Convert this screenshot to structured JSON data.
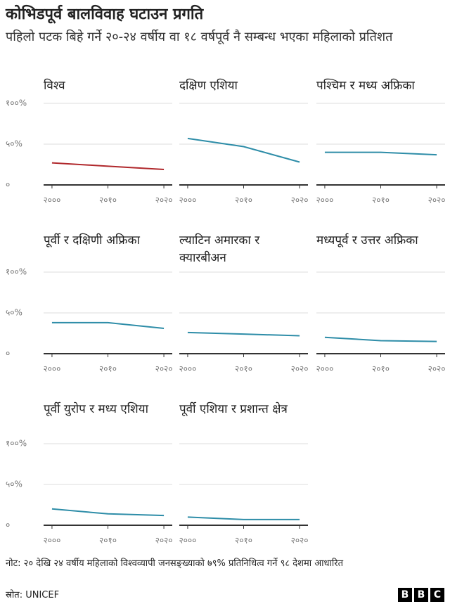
{
  "header": {
    "title": "कोभिडपूर्व बालविवाह घटाउन प्रगति",
    "subtitle": "पहिलो पटक बिहे गर्ने २०-२४ वर्षीय वा १८ वर्षपूर्व नै सम्बन्ध भएका महिलाको प्रतिशत"
  },
  "chart_data": {
    "type": "line",
    "x": [
      2000,
      2010,
      2020
    ],
    "xlim": [
      1998.5,
      2021.5
    ],
    "xticks": [
      {
        "value": 2000,
        "label": "२०००"
      },
      {
        "value": 2010,
        "label": "२०१०"
      },
      {
        "value": 2020,
        "label": "२०२०"
      }
    ],
    "ylim": [
      0,
      100
    ],
    "yticks": [
      {
        "value": 0,
        "label": "०"
      },
      {
        "value": 50,
        "label": "५०%"
      },
      {
        "value": 100,
        "label": "१००%"
      }
    ],
    "grid": true,
    "panels": [
      {
        "title": "विश्व",
        "color": "#b0282c",
        "values": [
          27,
          23,
          19
        ]
      },
      {
        "title": "दक्षिण एशिया",
        "color": "#2e8da8",
        "values": [
          57,
          47,
          28
        ]
      },
      {
        "title": "पश्चिम र मध्य अफ्रिका",
        "color": "#2e8da8",
        "values": [
          40,
          40,
          37
        ]
      },
      {
        "title": "पूर्वी र दक्षिणी अफ्रिका",
        "color": "#2e8da8",
        "values": [
          38,
          38,
          31
        ]
      },
      {
        "title": "ल्याटिन अमारका र क्यारबीअन",
        "color": "#2e8da8",
        "values": [
          26,
          24,
          22
        ]
      },
      {
        "title": "मध्यपूर्व र उत्तर अफ्रिका",
        "color": "#2e8da8",
        "values": [
          20,
          16,
          15
        ]
      },
      {
        "title": "पूर्वी युरोप र मध्य एशिया",
        "color": "#2e8da8",
        "values": [
          20,
          14,
          12
        ]
      },
      {
        "title": "पूर्वी एशिया र प्रशान्त क्षेत्र",
        "color": "#2e8da8",
        "values": [
          10,
          7,
          7
        ]
      }
    ]
  },
  "footer": {
    "note": "नोट: २० देखि २४ वर्षीय महिलाको विश्वव्यापी जनसङ्ख्याको ७९% प्रतिनिधित्व गर्ने ९८ देशमा आधारित",
    "source": "स्रोत: UNICEF",
    "logo": [
      "B",
      "B",
      "C"
    ]
  }
}
